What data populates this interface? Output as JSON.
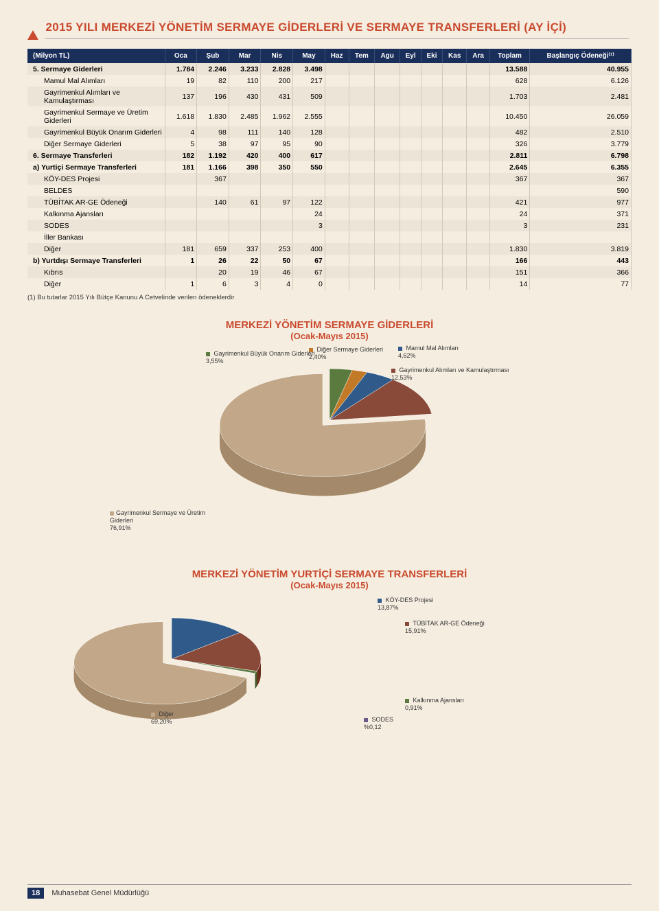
{
  "page_title": "2015 YILI MERKEZİ YÖNETİM SERMAYE GİDERLERİ VE SERMAYE TRANSFERLERİ (AY İÇİ)",
  "table": {
    "header_label": "(Milyon TL)",
    "months": [
      "Oca",
      "Şub",
      "Mar",
      "Nis",
      "May",
      "Haz",
      "Tem",
      "Agu",
      "Eyl",
      "Eki",
      "Kas",
      "Ara",
      "Toplam",
      "Başlangıç Ödeneği⁽¹⁾"
    ],
    "rows": [
      {
        "label": "5. Sermaye Giderleri",
        "bold": true,
        "indent": 0,
        "cells": [
          "1.784",
          "2.246",
          "3.233",
          "2.828",
          "3.498",
          "",
          "",
          "",
          "",
          "",
          "",
          "",
          "13.588",
          "40.955"
        ]
      },
      {
        "label": "Mamul Mal Alımları",
        "bold": false,
        "indent": 1,
        "cells": [
          "19",
          "82",
          "110",
          "200",
          "217",
          "",
          "",
          "",
          "",
          "",
          "",
          "",
          "628",
          "6.126"
        ]
      },
      {
        "label": "Gayrimenkul Alımları ve Kamulaştırması",
        "bold": false,
        "indent": 1,
        "cells": [
          "137",
          "196",
          "430",
          "431",
          "509",
          "",
          "",
          "",
          "",
          "",
          "",
          "",
          "1.703",
          "2.481"
        ]
      },
      {
        "label": "Gayrimenkul Sermaye ve Üretim Giderleri",
        "bold": false,
        "indent": 1,
        "cells": [
          "1.618",
          "1.830",
          "2.485",
          "1.962",
          "2.555",
          "",
          "",
          "",
          "",
          "",
          "",
          "",
          "10.450",
          "26.059"
        ]
      },
      {
        "label": "Gayrimenkul Büyük Onarım Giderleri",
        "bold": false,
        "indent": 1,
        "cells": [
          "4",
          "98",
          "111",
          "140",
          "128",
          "",
          "",
          "",
          "",
          "",
          "",
          "",
          "482",
          "2.510"
        ]
      },
      {
        "label": "Diğer Sermaye Giderleri",
        "bold": false,
        "indent": 1,
        "cells": [
          "5",
          "38",
          "97",
          "95",
          "90",
          "",
          "",
          "",
          "",
          "",
          "",
          "",
          "326",
          "3.779"
        ]
      },
      {
        "label": "6. Sermaye Transferleri",
        "bold": true,
        "indent": 0,
        "cells": [
          "182",
          "1.192",
          "420",
          "400",
          "617",
          "",
          "",
          "",
          "",
          "",
          "",
          "",
          "2.811",
          "6.798"
        ]
      },
      {
        "label": "a) Yurtiçi Sermaye Transferleri",
        "bold": true,
        "indent": 0,
        "cells": [
          "181",
          "1.166",
          "398",
          "350",
          "550",
          "",
          "",
          "",
          "",
          "",
          "",
          "",
          "2.645",
          "6.355"
        ]
      },
      {
        "label": "KÖY-DES Projesi",
        "bold": false,
        "indent": 1,
        "cells": [
          "",
          "367",
          "",
          "",
          "",
          "",
          "",
          "",
          "",
          "",
          "",
          "",
          "367",
          "367"
        ]
      },
      {
        "label": "BELDES",
        "bold": false,
        "indent": 1,
        "cells": [
          "",
          "",
          "",
          "",
          "",
          "",
          "",
          "",
          "",
          "",
          "",
          "",
          "",
          "590"
        ]
      },
      {
        "label": "TÜBİTAK AR-GE Ödeneği",
        "bold": false,
        "indent": 1,
        "cells": [
          "",
          "140",
          "61",
          "97",
          "122",
          "",
          "",
          "",
          "",
          "",
          "",
          "",
          "421",
          "977"
        ]
      },
      {
        "label": "Kalkınma Ajansları",
        "bold": false,
        "indent": 1,
        "cells": [
          "",
          "",
          "",
          "",
          "24",
          "",
          "",
          "",
          "",
          "",
          "",
          "",
          "24",
          "371"
        ]
      },
      {
        "label": "SODES",
        "bold": false,
        "indent": 1,
        "cells": [
          "",
          "",
          "",
          "",
          "3",
          "",
          "",
          "",
          "",
          "",
          "",
          "",
          "3",
          "231"
        ]
      },
      {
        "label": "İller Bankası",
        "bold": false,
        "indent": 1,
        "cells": [
          "",
          "",
          "",
          "",
          "",
          "",
          "",
          "",
          "",
          "",
          "",
          "",
          "",
          ""
        ]
      },
      {
        "label": "Diğer",
        "bold": false,
        "indent": 1,
        "cells": [
          "181",
          "659",
          "337",
          "253",
          "400",
          "",
          "",
          "",
          "",
          "",
          "",
          "",
          "1.830",
          "3.819"
        ]
      },
      {
        "label": "b) Yurtdışı Sermaye Transferleri",
        "bold": true,
        "indent": 0,
        "cells": [
          "1",
          "26",
          "22",
          "50",
          "67",
          "",
          "",
          "",
          "",
          "",
          "",
          "",
          "166",
          "443"
        ]
      },
      {
        "label": "Kıbrıs",
        "bold": false,
        "indent": 1,
        "cells": [
          "",
          "20",
          "19",
          "46",
          "67",
          "",
          "",
          "",
          "",
          "",
          "",
          "",
          "151",
          "366"
        ]
      },
      {
        "label": "Diğer",
        "bold": false,
        "indent": 1,
        "cells": [
          "1",
          "6",
          "3",
          "4",
          "0",
          "",
          "",
          "",
          "",
          "",
          "",
          "",
          "14",
          "77"
        ]
      }
    ]
  },
  "footnote": "(1)  Bu tutarlar 2015 Yılı Bütçe Kanunu A Cetvelinde verilen ödeneklerdir",
  "chart1": {
    "type": "pie-3d",
    "title": "MERKEZİ YÖNETİM SERMAYE  GİDERLERİ",
    "subtitle": "(Ocak-Mayıs 2015)",
    "background_color": "#f5ede0",
    "label_fontsize": 9,
    "title_fontsize": 15,
    "title_color": "#c94a2f",
    "slices": [
      {
        "name": "Gayrimenkul Büyük Onarım Giderleri",
        "pct": "3,55%",
        "color": "#5a7a3e"
      },
      {
        "name": "Diğer Sermaye Giderleri",
        "pct": "2,40%",
        "color": "#c27a28"
      },
      {
        "name": "Mamul Mal Alımları",
        "pct": "4,62%",
        "color": "#2f5a8a"
      },
      {
        "name": "Gayrimenkul Alımları ve Kamulaştırması",
        "pct": "12,53%",
        "color": "#8a4a3a"
      },
      {
        "name": "Gayrimenkul Sermaye ve Üretim Giderleri",
        "pct": "76,91%",
        "color": "#c2a888"
      }
    ]
  },
  "chart2": {
    "type": "pie-3d",
    "title": "MERKEZİ YÖNETİM YURTİÇİ SERMAYE TRANSFERLERİ",
    "subtitle": "(Ocak-Mayıs 2015)",
    "background_color": "#f5ede0",
    "label_fontsize": 9,
    "title_fontsize": 15,
    "title_color": "#c94a2f",
    "slices": [
      {
        "name": "KÖY-DES Projesi",
        "pct": "13,87%",
        "color": "#2f5a8a"
      },
      {
        "name": "TÜBİTAK AR-GE Ödeneği",
        "pct": "15,91%",
        "color": "#8a4a3a"
      },
      {
        "name": "Kalkınma Ajansları",
        "pct": "0,91%",
        "color": "#5a7a3e"
      },
      {
        "name": "SODES",
        "pct": "%0,12",
        "color": "#6a5a8a"
      },
      {
        "name": "Diğer",
        "pct": "69,20%",
        "color": "#c2a888"
      }
    ]
  },
  "footer": {
    "page_number": "18",
    "org": "Muhasebat Genel Müdürlüğü"
  }
}
